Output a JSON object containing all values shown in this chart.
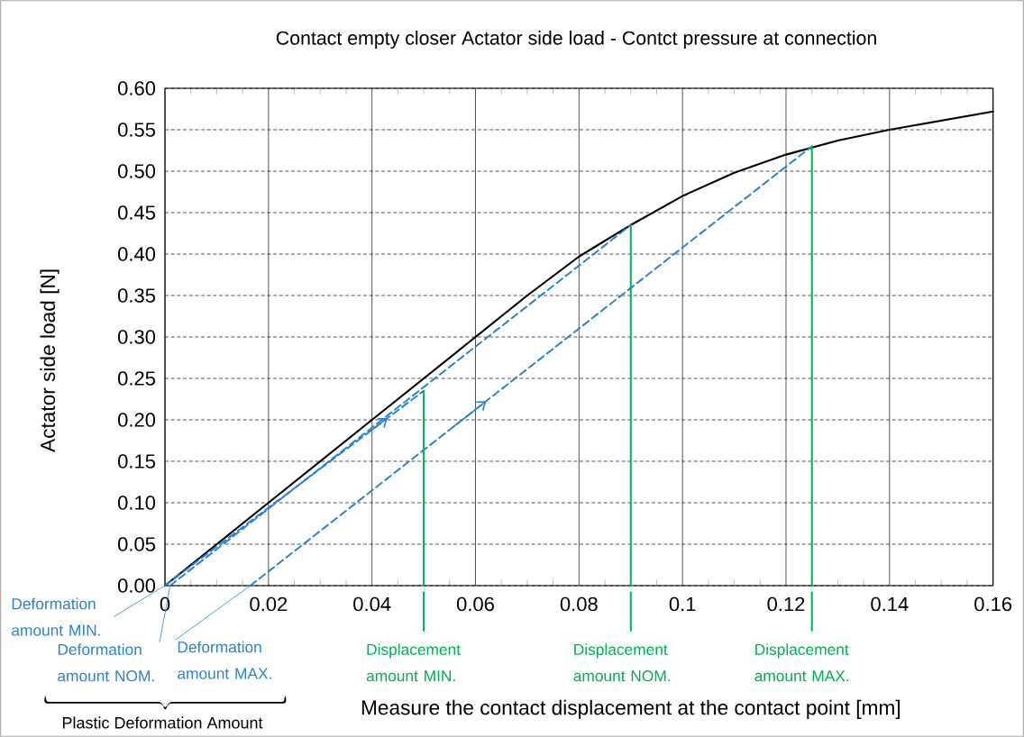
{
  "chart_data": {
    "type": "line",
    "title": "Contact empty closer  Actator side load  - Contct pressure at connection",
    "xlabel": "Measure the contact displacement at the contact point [mm]",
    "ylabel": "Actator side load  [N]",
    "series": [
      {
        "x": [
          0,
          0.02,
          0.04,
          0.05,
          0.06,
          0.07,
          0.08,
          0.09,
          0.1,
          0.11,
          0.12,
          0.13,
          0.14,
          0.15,
          0.16
        ],
        "values": [
          0,
          0.1,
          0.2,
          0.25,
          0.3,
          0.35,
          0.397,
          0.435,
          0.47,
          0.498,
          0.52,
          0.537,
          0.55,
          0.561,
          0.572
        ],
        "color": "#000000",
        "line_style": "solid"
      },
      {
        "x": [
          0,
          0.05
        ],
        "values": [
          0,
          0.235
        ],
        "color": "#2b83d0",
        "line_style": "dashed"
      },
      {
        "x": [
          0.001,
          0.09
        ],
        "values": [
          0,
          0.435
        ],
        "color": "#2b83d0",
        "line_style": "dashed"
      },
      {
        "x": [
          0.0165,
          0.125
        ],
        "values": [
          0,
          0.53
        ],
        "color": "#2b83d0",
        "line_style": "dashed"
      },
      {
        "x": [
          0.05,
          0.05
        ],
        "values": [
          0,
          0.235
        ],
        "color": "#00b050",
        "line_style": "solid"
      },
      {
        "x": [
          0.09,
          0.09
        ],
        "values": [
          0,
          0.435
        ],
        "color": "#00b050",
        "line_style": "solid"
      },
      {
        "x": [
          0.125,
          0.125
        ],
        "values": [
          0,
          0.53
        ],
        "color": "#00b050",
        "line_style": "solid"
      }
    ],
    "xlim": [
      0,
      0.16
    ],
    "xticks": [
      0,
      0.02,
      0.04,
      0.06,
      0.08,
      0.1,
      0.12,
      0.14,
      0.16
    ],
    "ylim": [
      0,
      0.6
    ],
    "yticks": [
      {
        "value": 0,
        "label": "0.00"
      },
      {
        "value": 0.05,
        "label": "0.05"
      },
      {
        "value": 0.1,
        "label": "0.10"
      },
      {
        "value": 0.15,
        "label": "0.15"
      },
      {
        "value": 0.2,
        "label": "0.20"
      },
      {
        "value": 0.25,
        "label": "0.25"
      },
      {
        "value": 0.3,
        "label": "0.30"
      },
      {
        "value": 0.35,
        "label": "0.35"
      },
      {
        "value": 0.4,
        "label": "0.40"
      },
      {
        "value": 0.45,
        "label": "0.45"
      },
      {
        "value": 0.5,
        "label": "0.50"
      },
      {
        "value": 0.55,
        "label": "0.55"
      },
      {
        "value": 0.6,
        "label": "0.60"
      }
    ],
    "grid": true,
    "marker": "none",
    "annotations": [
      {
        "text": "Deformation amount MIN.",
        "x": 0,
        "y": 0
      },
      {
        "text": "Deformation amount NOM.",
        "x": 0.001,
        "y": 0
      },
      {
        "text": "Deformation amount MAX.",
        "x": 0.0165,
        "y": 0
      },
      {
        "text": "Displacement amount MIN.",
        "x": 0.05,
        "y": 0
      },
      {
        "text": "Displacement amount NOM.",
        "x": 0.09,
        "y": 0
      },
      {
        "text": "Displacement amount MAX.",
        "x": 0.125,
        "y": 0
      },
      "Plastic Deformation Amount"
    ]
  }
}
